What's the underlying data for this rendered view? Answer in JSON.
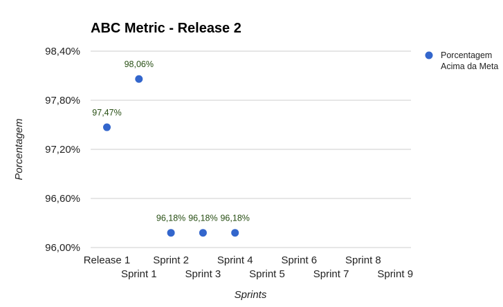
{
  "chart_data": {
    "type": "scatter",
    "title": "ABC Metric - Release 2",
    "xlabel": "Sprints",
    "ylabel": "Porcentagem",
    "categories": [
      "Release 1",
      "Sprint 1",
      "Sprint 2",
      "Sprint 3",
      "Sprint 4",
      "Sprint 5",
      "Sprint 6",
      "Sprint 7",
      "Sprint 8",
      "Sprint 9"
    ],
    "yticks": [
      "96,00%",
      "96,60%",
      "97,20%",
      "97,80%",
      "98,40%"
    ],
    "ylim": [
      96.0,
      98.4
    ],
    "grid": true,
    "legend_position": "right",
    "series": [
      {
        "name": "Porcentagem Acima da Meta",
        "color": "#3366cc",
        "label_color": "#274e13",
        "points": [
          {
            "x": "Release 1",
            "y": 97.47,
            "label": "97,47%"
          },
          {
            "x": "Sprint 1",
            "y": 98.06,
            "label": "98,06%"
          },
          {
            "x": "Sprint 2",
            "y": 96.18,
            "label": "96,18%"
          },
          {
            "x": "Sprint 3",
            "y": 96.18,
            "label": "96,18%"
          },
          {
            "x": "Sprint 4",
            "y": 96.18,
            "label": "96,18%"
          }
        ]
      }
    ],
    "legend": [
      "Porcentagem",
      "Acima da Meta"
    ]
  }
}
